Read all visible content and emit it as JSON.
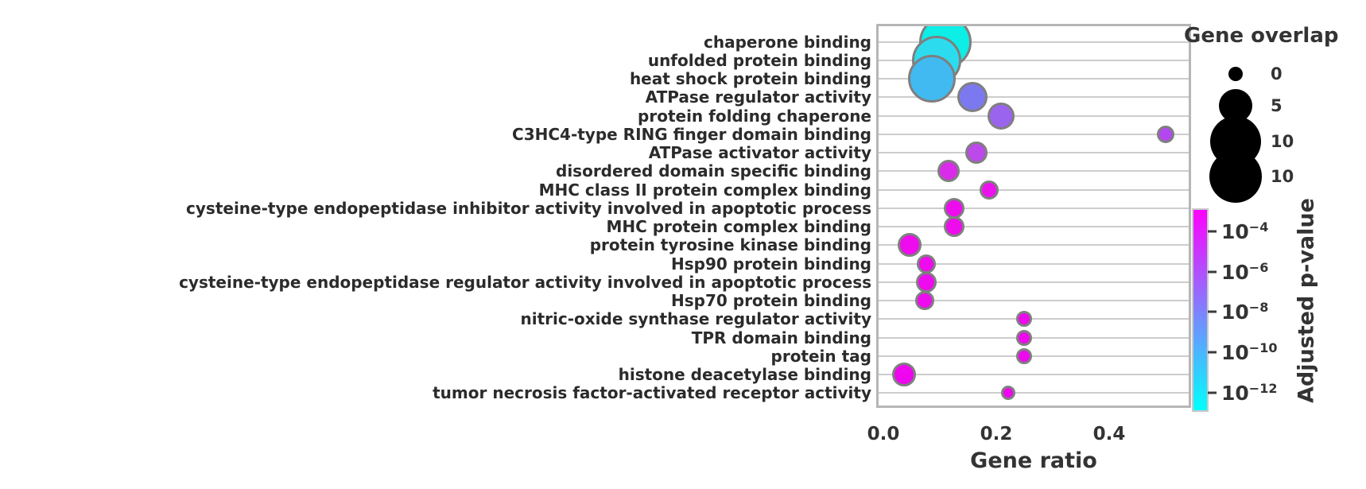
{
  "chart_data": {
    "type": "scatter",
    "subtype": "bubble-dotplot-go-enrichment",
    "xlabel": "Gene ratio",
    "x_tick_labels": [
      "0.0",
      "0.2",
      "0.4"
    ],
    "x_tick_values": [
      0.0,
      0.2,
      0.4
    ],
    "xlim": [
      -0.013,
      0.545
    ],
    "grid": "horizontal-per-category",
    "categories": [
      "chaperone binding",
      "unfolded protein binding",
      "heat shock protein binding",
      "ATPase regulator activity",
      "protein folding chaperone",
      "C3HC4-type RING finger domain binding",
      "ATPase activator activity",
      "disordered domain specific binding",
      "MHC class II protein complex binding",
      "cysteine-type endopeptidase inhibitor activity involved in apoptotic process",
      "MHC protein complex binding",
      "protein tyrosine kinase binding",
      "Hsp90 protein binding",
      "cysteine-type endopeptidase regulator activity involved in apoptotic process",
      "Hsp70 protein binding",
      "nitric-oxide synthase regulator activity",
      "TPR domain binding",
      "protein tag",
      "histone deacetylase binding",
      "tumor necrosis factor-activated receptor activity"
    ],
    "points": [
      {
        "term": "chaperone binding",
        "gene_ratio": 0.11,
        "gene_overlap_approx": 10,
        "adj_p_value_approx": "3e-13",
        "radius_px": 33,
        "color": "#0ceee6"
      },
      {
        "term": "unfolded protein binding",
        "gene_ratio": 0.094,
        "gene_overlap_approx": 9,
        "adj_p_value_approx": "3e-12",
        "radius_px": 31,
        "color": "#2cdcee"
      },
      {
        "term": "heat shock protein binding",
        "gene_ratio": 0.086,
        "gene_overlap_approx": 9,
        "adj_p_value_approx": "5e-11",
        "radius_px": 30,
        "color": "#41baf1"
      },
      {
        "term": "ATPase regulator activity",
        "gene_ratio": 0.158,
        "gene_overlap_approx": 4,
        "adj_p_value_approx": "1e-8",
        "radius_px": 19,
        "color": "#7c79f0"
      },
      {
        "term": "protein folding chaperone",
        "gene_ratio": 0.208,
        "gene_overlap_approx": 3,
        "adj_p_value_approx": "2e-7",
        "radius_px": 17,
        "color": "#9b64ee"
      },
      {
        "term": "C3HC4-type RING finger domain binding",
        "gene_ratio": 0.5,
        "gene_overlap_approx": 1,
        "adj_p_value_approx": "2e-6",
        "radius_px": 11,
        "color": "#b347ef"
      },
      {
        "term": "ATPase activator activity",
        "gene_ratio": 0.165,
        "gene_overlap_approx": 2,
        "adj_p_value_approx": "4e-6",
        "radius_px": 14,
        "color": "#bc49e9"
      },
      {
        "term": "disordered domain specific binding",
        "gene_ratio": 0.115,
        "gene_overlap_approx": 2,
        "adj_p_value_approx": "5e-5",
        "radius_px": 14,
        "color": "#d92be9"
      },
      {
        "term": "MHC class II protein complex binding",
        "gene_ratio": 0.187,
        "gene_overlap_approx": 1,
        "adj_p_value_approx": "3e-4",
        "radius_px": 12,
        "color": "#ec12ee"
      },
      {
        "term": "cysteine-type endopeptidase inhibitor activity involved in apoptotic process",
        "gene_ratio": 0.125,
        "gene_overlap_approx": 2,
        "adj_p_value_approx": "5e-4",
        "radius_px": 13,
        "color": "#ee0bee"
      },
      {
        "term": "MHC protein complex binding",
        "gene_ratio": 0.125,
        "gene_overlap_approx": 2,
        "adj_p_value_approx": "5e-4",
        "radius_px": 13,
        "color": "#ee0bee"
      },
      {
        "term": "protein tyrosine kinase binding",
        "gene_ratio": 0.046,
        "gene_overlap_approx": 3,
        "adj_p_value_approx": "5e-4",
        "radius_px": 15,
        "color": "#ee0bee"
      },
      {
        "term": "Hsp90 protein binding",
        "gene_ratio": 0.076,
        "gene_overlap_approx": 1,
        "adj_p_value_approx": "5e-4",
        "radius_px": 12,
        "color": "#ee0bee"
      },
      {
        "term": "cysteine-type endopeptidase regulator activity involved in apoptotic process",
        "gene_ratio": 0.076,
        "gene_overlap_approx": 2,
        "adj_p_value_approx": "5e-4",
        "radius_px": 13,
        "color": "#ee0bee"
      },
      {
        "term": "Hsp70 protein binding",
        "gene_ratio": 0.073,
        "gene_overlap_approx": 1,
        "adj_p_value_approx": "5e-4",
        "radius_px": 12,
        "color": "#ee0bee"
      },
      {
        "term": "nitric-oxide synthase regulator activity",
        "gene_ratio": 0.249,
        "gene_overlap_approx": 1,
        "adj_p_value_approx": "6e-4",
        "radius_px": 10,
        "color": "#ee08ee"
      },
      {
        "term": "TPR domain binding",
        "gene_ratio": 0.249,
        "gene_overlap_approx": 1,
        "adj_p_value_approx": "6e-4",
        "radius_px": 10,
        "color": "#ee08ee"
      },
      {
        "term": "protein tag",
        "gene_ratio": 0.249,
        "gene_overlap_approx": 1,
        "adj_p_value_approx": "6e-4",
        "radius_px": 10,
        "color": "#ee08ee"
      },
      {
        "term": "histone deacetylase binding",
        "gene_ratio": 0.037,
        "gene_overlap_approx": 2,
        "adj_p_value_approx": "6e-4",
        "radius_px": 15,
        "color": "#ee06ee"
      },
      {
        "term": "tumor necrosis factor-activated receptor activity",
        "gene_ratio": 0.221,
        "gene_overlap_approx": 1,
        "adj_p_value_approx": "6e-4",
        "radius_px": 9,
        "color": "#ee06ee"
      }
    ],
    "size_legend": {
      "title": "Gene overlap",
      "entries": [
        {
          "label": "0",
          "radius_px": 9
        },
        {
          "label": "5",
          "radius_px": 21
        },
        {
          "label": "10",
          "radius_px": 32
        },
        {
          "label": "10",
          "radius_px": 33
        }
      ],
      "swatch_color": "#000000"
    },
    "colorbar": {
      "label": "Adjusted p-value",
      "ticks": [
        {
          "base": "10",
          "exp": "−4"
        },
        {
          "base": "10",
          "exp": "−6"
        },
        {
          "base": "10",
          "exp": "−8"
        },
        {
          "base": "10",
          "exp": "−10"
        },
        {
          "base": "10",
          "exp": "−12"
        }
      ],
      "top_color": "#ff00ff",
      "mid_color": "#8080ff",
      "bottom_color": "#00ffff",
      "orientation": "vertical",
      "scale": "log"
    },
    "style": {
      "gridline_color": "#cdcdcd",
      "plot_border_color": "#b6b6b6",
      "bubble_stroke_color": "#7f7f7f",
      "text_color": "#2b2b2b",
      "background": "#ffffff"
    }
  }
}
